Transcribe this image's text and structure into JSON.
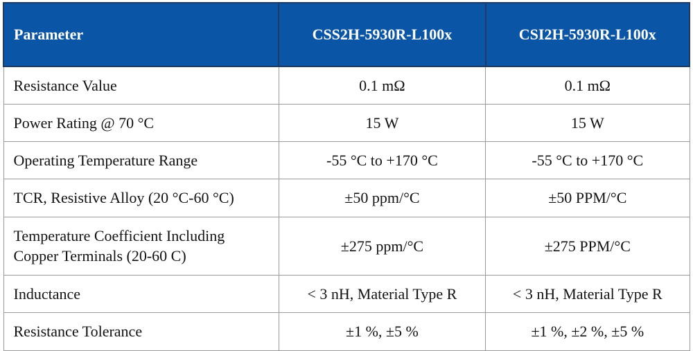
{
  "table": {
    "header": [
      "Parameter",
      "CSS2H-5930R-L100x",
      "CSI2H-5930R-L100x"
    ],
    "rows": [
      [
        "Resistance Value",
        "0.1 mΩ",
        "0.1 mΩ"
      ],
      [
        "Power Rating @ 70 °C",
        "15 W",
        "15 W"
      ],
      [
        "Operating Temperature Range",
        "-55 °C to +170 °C",
        "-55 °C to +170 °C"
      ],
      [
        "TCR, Resistive Alloy (20 °C-60 °C)",
        "±50 ppm/°C",
        "±50 PPM/°C"
      ],
      [
        "Temperature Coefficient Including Copper Terminals (20-60 C)",
        "±275 ppm/°C",
        "±275 PPM/°C"
      ],
      [
        "Inductance",
        "< 3 nH, Material Type R",
        "< 3 nH, Material Type R"
      ],
      [
        "Resistance Tolerance",
        "±1 %, ±5 %",
        "±1 %, ±2 %, ±5 %"
      ]
    ]
  }
}
